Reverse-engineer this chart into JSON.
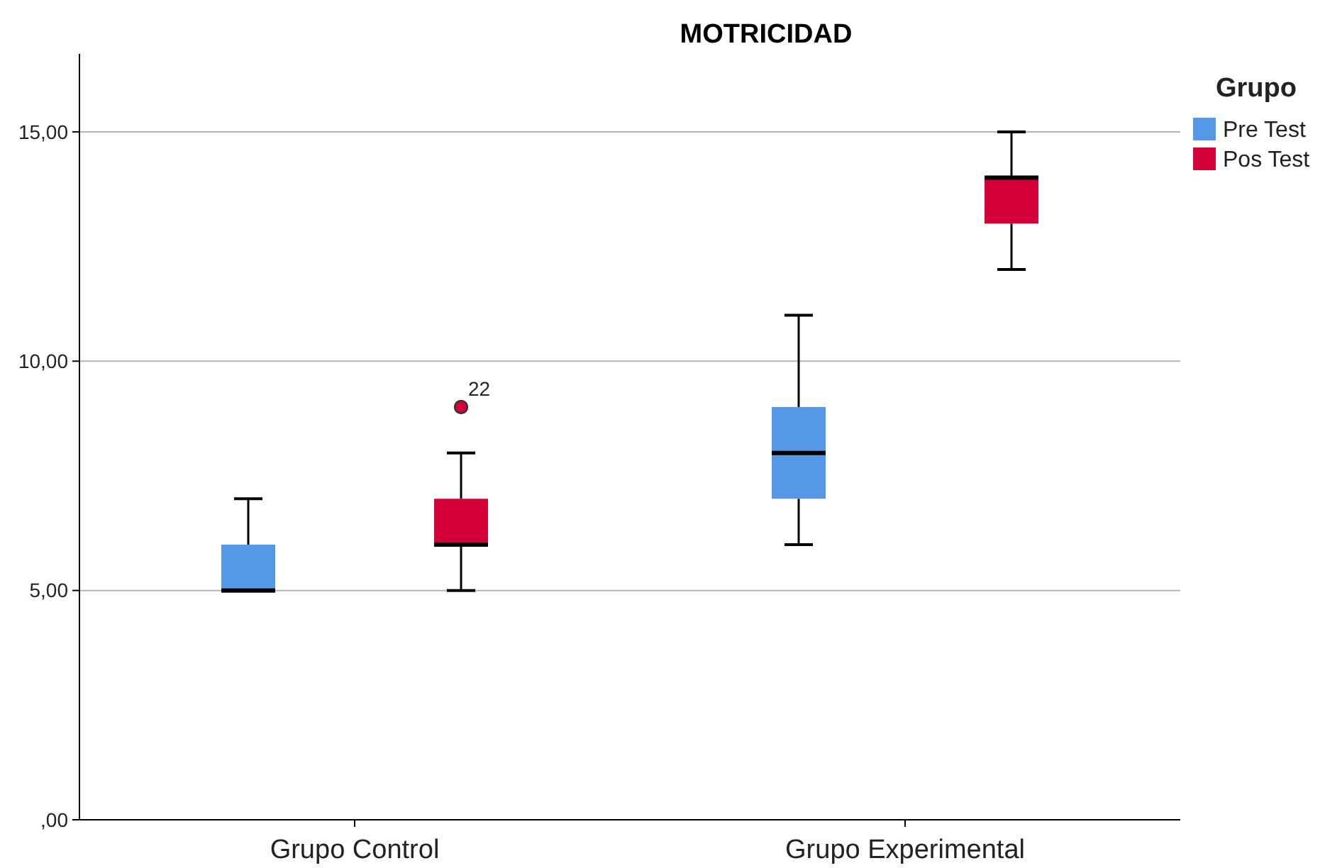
{
  "chart_data": {
    "type": "box",
    "title": "MOTRICIDAD",
    "legend_title": "Grupo",
    "legend": "top right",
    "grid": "y",
    "categories": [
      "Grupo Control",
      "Grupo Experimental"
    ],
    "ylim": [
      0,
      16.7
    ],
    "yticks": [
      {
        "value": 0,
        "label": ",00"
      },
      {
        "value": 5,
        "label": "5,00"
      },
      {
        "value": 10,
        "label": "10,00"
      },
      {
        "value": 15,
        "label": "15,00"
      }
    ],
    "series": [
      {
        "name": "Pre Test",
        "color": "#5599e6",
        "boxes": [
          {
            "low": 5,
            "q1": 5,
            "median": 5,
            "q3": 6,
            "high": 7
          },
          {
            "low": 6,
            "q1": 7,
            "median": 8,
            "q3": 9,
            "high": 11
          }
        ]
      },
      {
        "name": "Pos Test",
        "color": "#d4003a",
        "boxes": [
          {
            "low": 5,
            "q1": 6,
            "median": 6,
            "q3": 7,
            "high": 8,
            "outliers": [
              9
            ]
          },
          {
            "low": 12,
            "q1": 13,
            "median": 14,
            "q3": 14,
            "high": 15
          }
        ]
      }
    ],
    "annotations": [
      "22"
    ]
  }
}
